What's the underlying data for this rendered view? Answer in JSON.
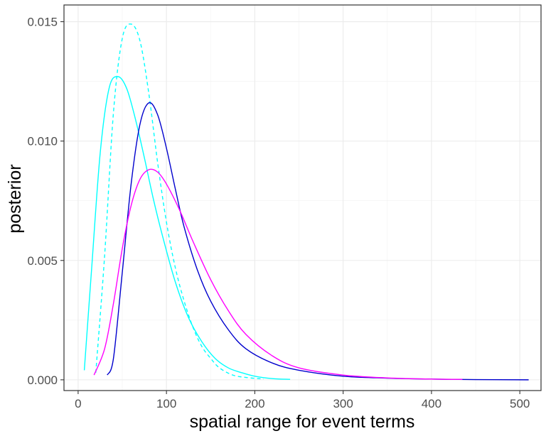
{
  "chart_data": {
    "type": "line",
    "title": "",
    "xlabel": "spatial range for event terms",
    "ylabel": "posterior",
    "xlim": [
      -16,
      524
    ],
    "ylim": [
      -0.00045,
      0.0157
    ],
    "x_ticks": [
      0,
      100,
      200,
      300,
      400,
      500
    ],
    "y_ticks": [
      0.0,
      0.005,
      0.01,
      0.015
    ],
    "x_tick_labels": [
      "0",
      "100",
      "200",
      "300",
      "400",
      "500"
    ],
    "y_tick_labels": [
      "0.000",
      "0.005",
      "0.010",
      "0.015"
    ],
    "grid": true,
    "legend": "none",
    "series": [
      {
        "color": "#00FFFF",
        "linestyle": "solid",
        "x": [
          7,
          15,
          25,
          35,
          45,
          55,
          65,
          75,
          85,
          95,
          110,
          125,
          140,
          155,
          170,
          185,
          200,
          220,
          240
        ],
        "y": [
          0.0004,
          0.0045,
          0.0095,
          0.0122,
          0.0127,
          0.0122,
          0.0109,
          0.0093,
          0.0076,
          0.0061,
          0.0041,
          0.0026,
          0.0016,
          0.0009,
          0.0005,
          0.0003,
          0.00015,
          5e-05,
          2e-05
        ]
      },
      {
        "color": "#00FFFF",
        "linestyle": "dashed",
        "x": [
          20,
          30,
          40,
          50,
          60,
          70,
          80,
          90,
          100,
          110,
          120,
          130,
          140,
          150,
          160,
          175,
          190,
          210
        ],
        "y": [
          0.0003,
          0.0052,
          0.0112,
          0.0143,
          0.0149,
          0.0142,
          0.012,
          0.0091,
          0.0066,
          0.0047,
          0.0033,
          0.0022,
          0.0014,
          0.0009,
          0.0005,
          0.0002,
          0.0001,
          3e-05
        ]
      },
      {
        "color": "#0000CD",
        "linestyle": "solid",
        "x": [
          33,
          40,
          50,
          60,
          70,
          80,
          90,
          100,
          110,
          120,
          135,
          150,
          170,
          190,
          220,
          250,
          300,
          350,
          400,
          450,
          510
        ],
        "y": [
          0.0002,
          0.0009,
          0.0045,
          0.0082,
          0.0107,
          0.0116,
          0.0111,
          0.0097,
          0.008,
          0.0064,
          0.0046,
          0.0033,
          0.0021,
          0.0013,
          0.0007,
          0.0004,
          0.00015,
          7e-05,
          3e-05,
          1e-05,
          0.0
        ]
      },
      {
        "color": "#FF00FF",
        "linestyle": "solid",
        "x": [
          18,
          30,
          40,
          50,
          60,
          70,
          80,
          90,
          100,
          115,
          130,
          150,
          170,
          190,
          220,
          250,
          300,
          350,
          400,
          435
        ],
        "y": [
          0.0002,
          0.0013,
          0.0032,
          0.0055,
          0.0073,
          0.0084,
          0.0088,
          0.0087,
          0.0082,
          0.0071,
          0.0058,
          0.0042,
          0.0029,
          0.0019,
          0.001,
          0.0005,
          0.0002,
          8e-05,
          3e-05,
          2e-05
        ]
      }
    ]
  }
}
